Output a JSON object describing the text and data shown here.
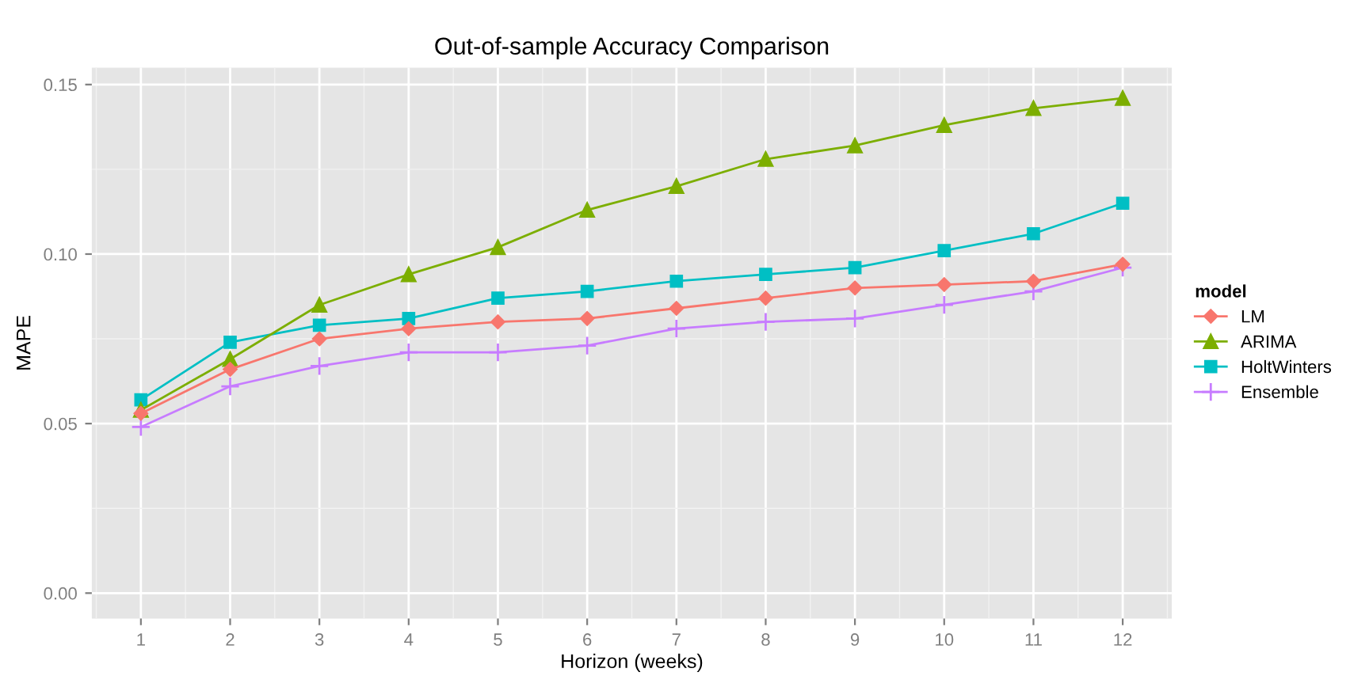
{
  "chart_data": {
    "type": "line",
    "title": "Out-of-sample Accuracy Comparison",
    "xlabel": "Horizon (weeks)",
    "ylabel": "MAPE",
    "legend_title": "model",
    "legend": "right",
    "grid": true,
    "x": [
      1,
      2,
      3,
      4,
      5,
      6,
      7,
      8,
      9,
      10,
      11,
      12
    ],
    "xlim": [
      0.45,
      12.55
    ],
    "xticks": [
      1,
      2,
      3,
      4,
      5,
      6,
      7,
      8,
      9,
      10,
      11,
      12
    ],
    "ylim": [
      -0.0075,
      0.155
    ],
    "yticks": [
      {
        "value": 0,
        "label": "0.00"
      },
      {
        "value": 0.05,
        "label": "0.05"
      },
      {
        "value": 0.1,
        "label": "0.10"
      },
      {
        "value": 0.15,
        "label": "0.15"
      }
    ],
    "series": [
      {
        "name": "LM",
        "color": "#f8766d",
        "marker": "diamond",
        "values": [
          0.053,
          0.066,
          0.075,
          0.078,
          0.08,
          0.081,
          0.084,
          0.087,
          0.09,
          0.091,
          0.092,
          0.097
        ]
      },
      {
        "name": "ARIMA",
        "color": "#7cae00",
        "marker": "triangle",
        "values": [
          0.054,
          0.069,
          0.085,
          0.094,
          0.102,
          0.113,
          0.12,
          0.128,
          0.132,
          0.138,
          0.143,
          0.146
        ]
      },
      {
        "name": "HoltWinters",
        "color": "#00bfc4",
        "marker": "square",
        "values": [
          0.057,
          0.074,
          0.079,
          0.081,
          0.087,
          0.089,
          0.092,
          0.094,
          0.096,
          0.101,
          0.106,
          0.115
        ]
      },
      {
        "name": "Ensemble",
        "color": "#c77cff",
        "marker": "cross",
        "values": [
          0.049,
          0.061,
          0.067,
          0.071,
          0.071,
          0.073,
          0.078,
          0.08,
          0.081,
          0.085,
          0.089,
          0.096
        ]
      }
    ]
  }
}
